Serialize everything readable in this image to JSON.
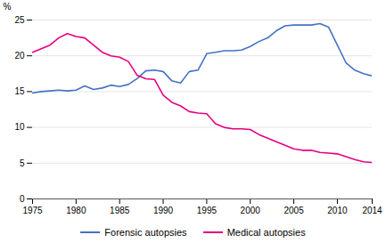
{
  "chart_data": {
    "type": "line",
    "x": [
      1975,
      1976,
      1977,
      1978,
      1979,
      1980,
      1981,
      1982,
      1983,
      1984,
      1985,
      1986,
      1987,
      1988,
      1989,
      1990,
      1991,
      1992,
      1993,
      1994,
      1995,
      1996,
      1997,
      1998,
      1999,
      2000,
      2001,
      2002,
      2003,
      2004,
      2005,
      2006,
      2007,
      2008,
      2009,
      2010,
      2011,
      2012,
      2013,
      2014
    ],
    "series": [
      {
        "name": "Forensic autopsies",
        "color": "#4472c4",
        "values": [
          14.8,
          15.0,
          15.1,
          15.2,
          15.1,
          15.2,
          15.8,
          15.3,
          15.5,
          15.9,
          15.7,
          16.0,
          16.8,
          17.9,
          18.0,
          17.8,
          16.5,
          16.2,
          17.8,
          18.0,
          20.3,
          20.5,
          20.7,
          20.7,
          20.8,
          21.3,
          22.0,
          22.5,
          23.5,
          24.2,
          24.3,
          24.3,
          24.3,
          24.5,
          24.0,
          21.5,
          19.0,
          18.0,
          17.5,
          17.2
        ]
      },
      {
        "name": "Medical autopsies",
        "color": "#e6007e",
        "values": [
          20.5,
          21.0,
          21.5,
          22.5,
          23.1,
          22.7,
          22.5,
          21.5,
          20.5,
          20.0,
          19.8,
          19.2,
          17.3,
          16.8,
          16.7,
          14.5,
          13.5,
          13.0,
          12.2,
          12.0,
          11.9,
          10.5,
          10.0,
          9.8,
          9.8,
          9.7,
          9.0,
          8.5,
          8.0,
          7.5,
          7.0,
          6.8,
          6.8,
          6.5,
          6.4,
          6.3,
          5.9,
          5.5,
          5.2,
          5.1
        ]
      }
    ],
    "ylabel": "%",
    "xlim": [
      1975,
      2014
    ],
    "ylim": [
      0,
      25
    ],
    "xticks": [
      1975,
      1980,
      1985,
      1990,
      1995,
      2000,
      2005,
      2010,
      2014
    ],
    "yticks": [
      0,
      5,
      10,
      15,
      20,
      25
    ],
    "grid": "y",
    "legend": "bottom"
  }
}
